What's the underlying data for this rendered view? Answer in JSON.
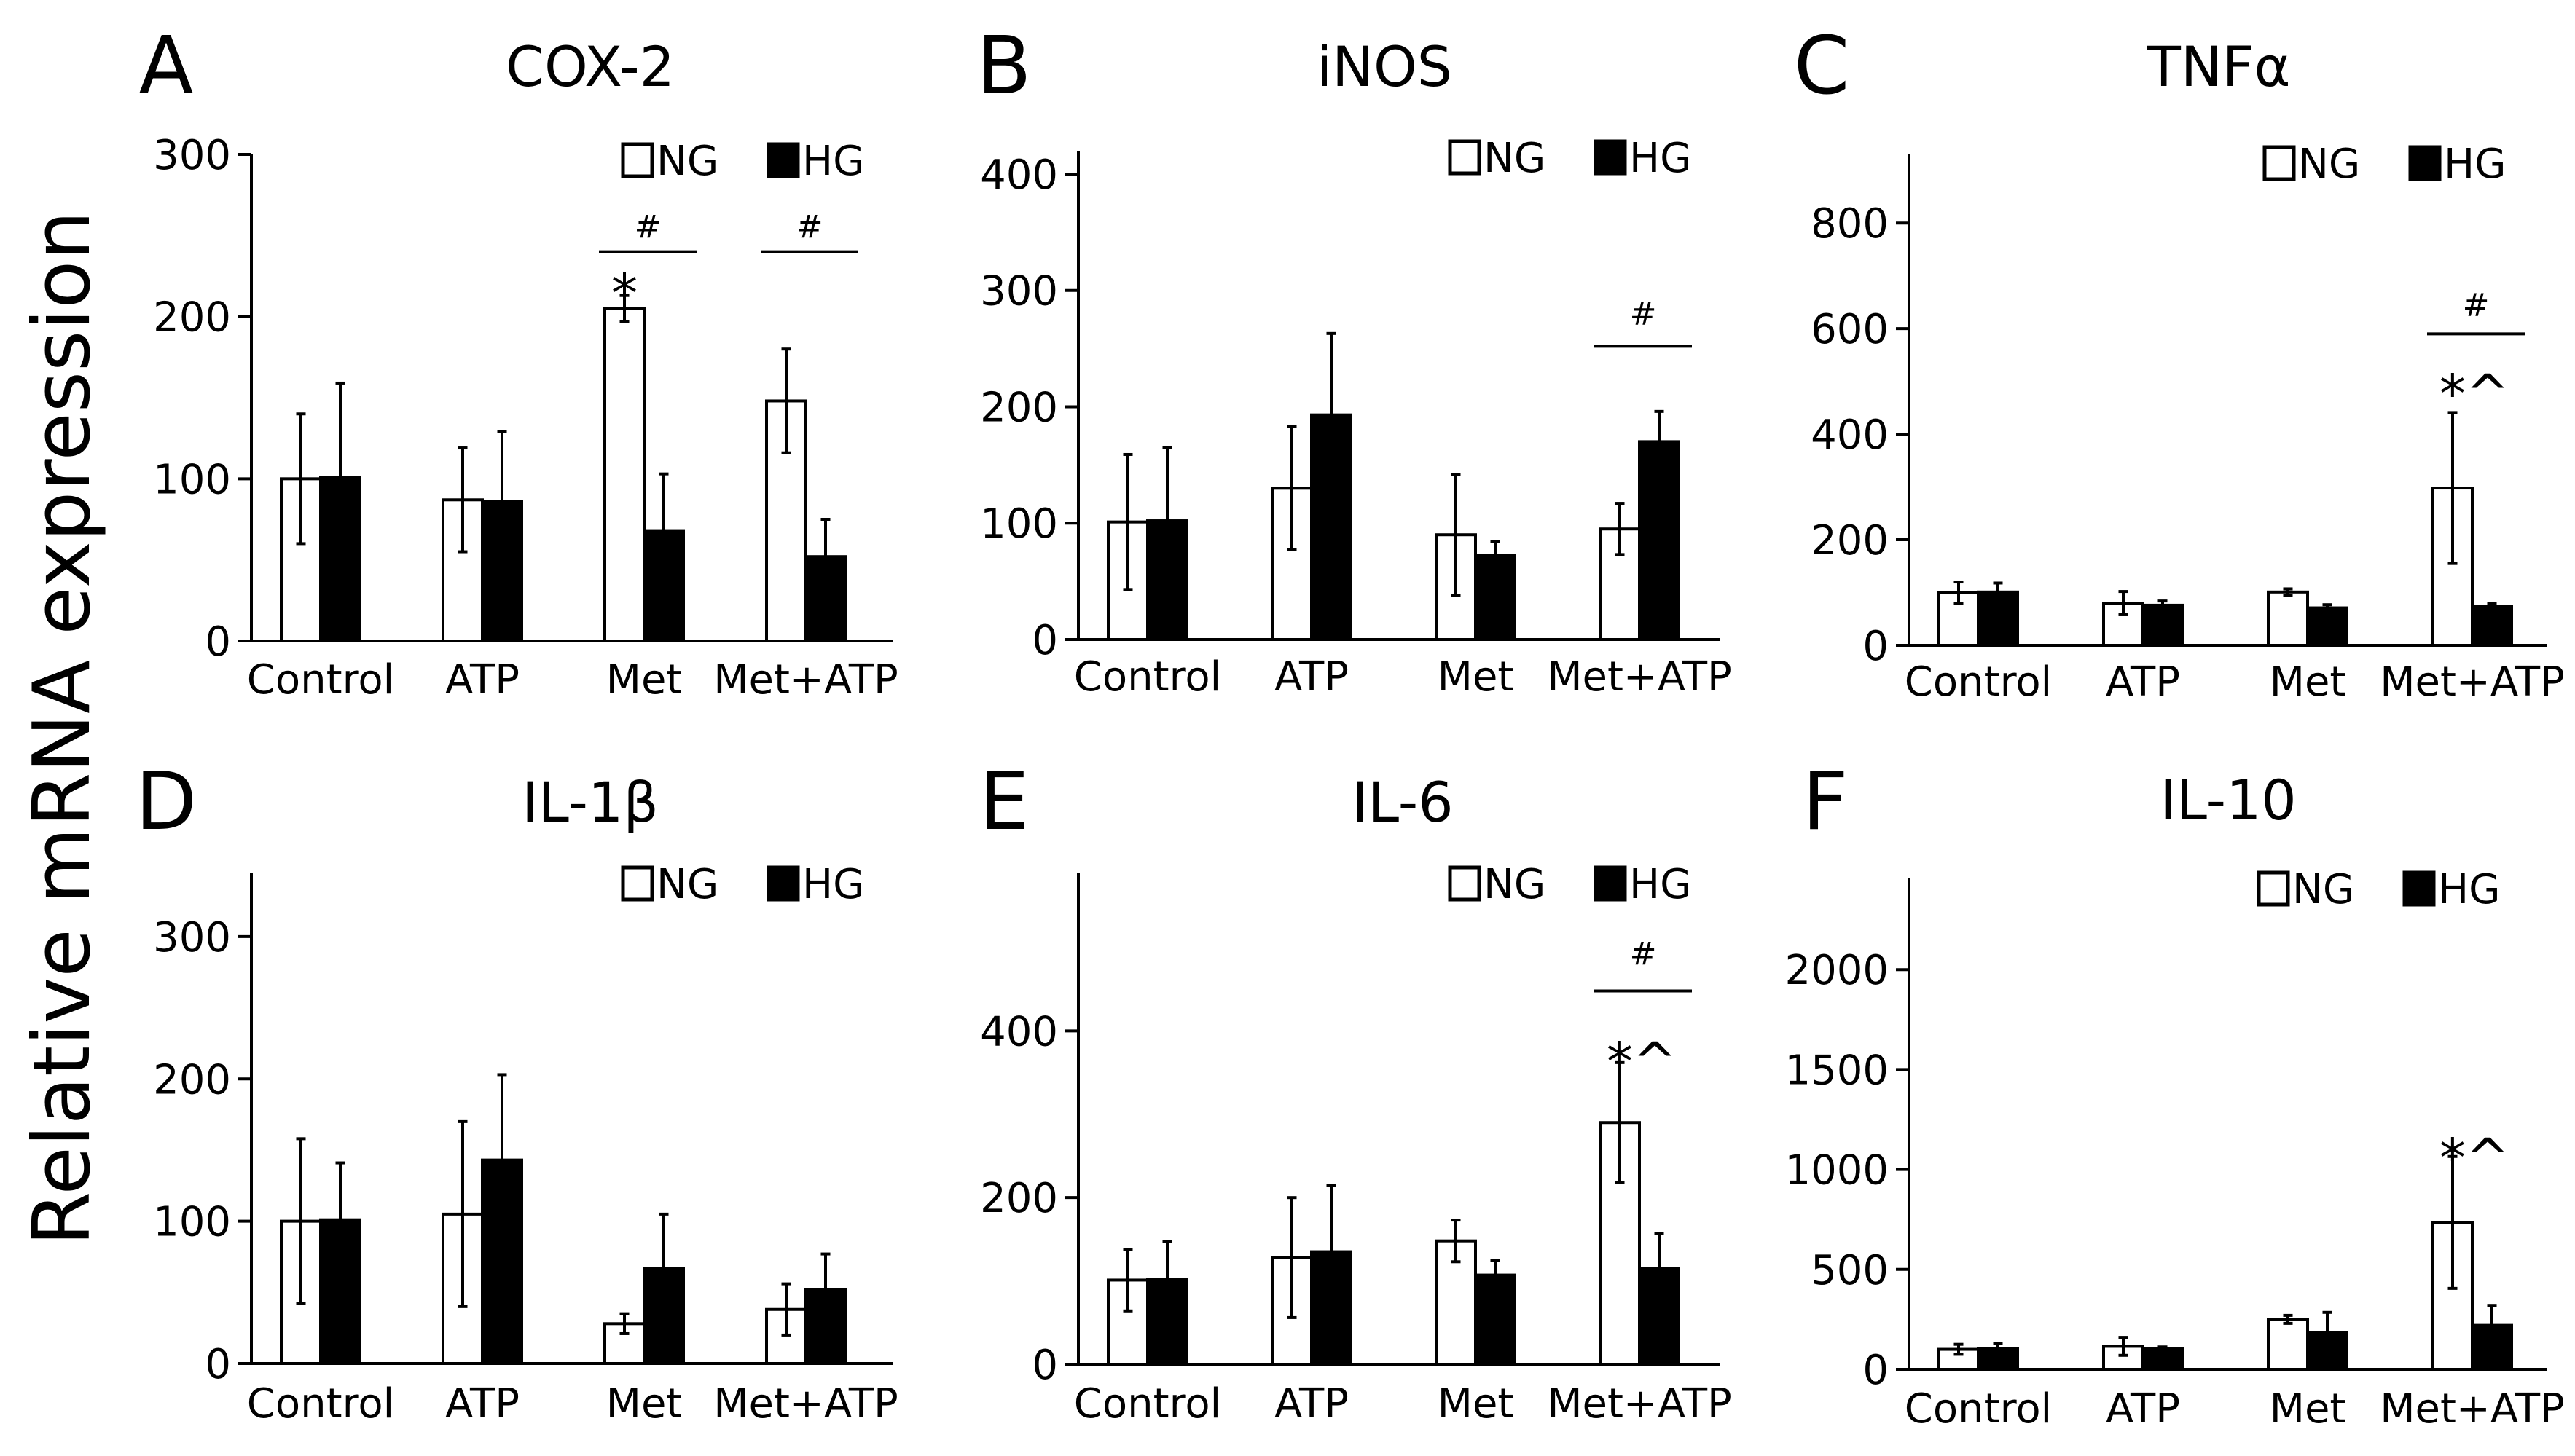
{
  "figure": {
    "ylabel": "Relative mRNA expression",
    "categories": [
      "Control",
      "ATP",
      "Met",
      "Met+ATP"
    ],
    "legend": [
      "NG",
      "HG"
    ],
    "colors": {
      "NG": "#ffffff",
      "HG": "#000000",
      "stroke": "#000000"
    }
  },
  "chart_data": [
    {
      "panel": "A",
      "title": "COX-2",
      "type": "bar",
      "categories": [
        "Control",
        "ATP",
        "Met",
        "Met+ATP"
      ],
      "series": [
        {
          "name": "NG",
          "values": [
            100,
            87,
            205,
            148
          ],
          "errors": [
            40,
            32,
            8,
            32
          ]
        },
        {
          "name": "HG",
          "values": [
            101,
            86,
            68,
            52
          ],
          "errors": [
            58,
            43,
            35,
            23
          ]
        }
      ],
      "ylim": [
        0,
        300
      ],
      "yticks": [
        0,
        100,
        200,
        300
      ],
      "legend_position": "top-right",
      "annotations": [
        {
          "text": "*",
          "category": 2,
          "series": "NG",
          "y": 222
        },
        {
          "text": "#",
          "category": 2,
          "bracket_y": 240,
          "label_y": 254
        },
        {
          "text": "#",
          "category": 3,
          "bracket_y": 240,
          "label_y": 254
        }
      ]
    },
    {
      "panel": "B",
      "title": "iNOS",
      "type": "bar",
      "categories": [
        "Control",
        "ATP",
        "Met",
        "Met+ATP"
      ],
      "series": [
        {
          "name": "NG",
          "values": [
            101,
            130,
            90,
            95
          ],
          "errors": [
            58,
            53,
            52,
            22
          ]
        },
        {
          "name": "HG",
          "values": [
            102,
            193,
            72,
            170
          ],
          "errors": [
            63,
            70,
            12,
            26
          ]
        }
      ],
      "ylim": [
        0,
        420
      ],
      "yticks": [
        0,
        100,
        200,
        300,
        400
      ],
      "legend_position": "top-right",
      "annotations": [
        {
          "text": "#",
          "category": 3,
          "bracket_y": 252,
          "label_y": 278
        }
      ]
    },
    {
      "panel": "C",
      "title": "TNFα",
      "type": "bar",
      "categories": [
        "Control",
        "ATP",
        "Met",
        "Met+ATP"
      ],
      "series": [
        {
          "name": "NG",
          "values": [
            100,
            80,
            101,
            298
          ],
          "errors": [
            20,
            22,
            6,
            143
          ]
        },
        {
          "name": "HG",
          "values": [
            101,
            76,
            71,
            74
          ],
          "errors": [
            17,
            8,
            6,
            6
          ]
        }
      ],
      "ylim": [
        0,
        930
      ],
      "yticks": [
        0,
        200,
        400,
        600,
        800
      ],
      "legend_position": "top-right",
      "annotations": [
        {
          "text": "*^",
          "category": 3,
          "series": "NG",
          "y": 500
        },
        {
          "text": "#",
          "category": 3,
          "bracket_y": 590,
          "label_y": 640
        }
      ]
    },
    {
      "panel": "D",
      "title": "IL-1β",
      "type": "bar",
      "categories": [
        "Control",
        "ATP",
        "Met",
        "Met+ATP"
      ],
      "series": [
        {
          "name": "NG",
          "values": [
            100,
            105,
            28,
            38
          ],
          "errors": [
            58,
            65,
            7,
            18
          ]
        },
        {
          "name": "HG",
          "values": [
            101,
            143,
            67,
            52
          ],
          "errors": [
            40,
            60,
            38,
            25
          ]
        }
      ],
      "ylim": [
        0,
        345
      ],
      "yticks": [
        0,
        100,
        200,
        300
      ],
      "legend_position": "top-right",
      "annotations": []
    },
    {
      "panel": "E",
      "title": "IL-6",
      "type": "bar",
      "categories": [
        "Control",
        "ATP",
        "Met",
        "Met+ATP"
      ],
      "series": [
        {
          "name": "NG",
          "values": [
            101,
            128,
            148,
            290
          ],
          "errors": [
            37,
            72,
            25,
            72
          ]
        },
        {
          "name": "HG",
          "values": [
            102,
            135,
            107,
            115
          ],
          "errors": [
            45,
            80,
            18,
            42
          ]
        }
      ],
      "ylim": [
        0,
        590
      ],
      "yticks": [
        0,
        200,
        400
      ],
      "legend_position": "top-right",
      "annotations": [
        {
          "text": "*^",
          "category": 3,
          "series": "NG",
          "y": 378
        },
        {
          "text": "#",
          "category": 3,
          "bracket_y": 448,
          "label_y": 490
        }
      ]
    },
    {
      "panel": "F",
      "title": "IL-10",
      "type": "bar",
      "categories": [
        "Control",
        "ATP",
        "Met",
        "Met+ATP"
      ],
      "series": [
        {
          "name": "NG",
          "values": [
            100,
            115,
            250,
            735
          ],
          "errors": [
            25,
            45,
            20,
            330
          ]
        },
        {
          "name": "HG",
          "values": [
            105,
            102,
            185,
            220
          ],
          "errors": [
            25,
            10,
            100,
            100
          ]
        }
      ],
      "ylim": [
        0,
        2460
      ],
      "yticks": [
        0,
        500,
        1000,
        1500,
        2000
      ],
      "legend_position": "top-right",
      "annotations": [
        {
          "text": "*^",
          "category": 3,
          "series": "NG",
          "y": 1120
        }
      ]
    }
  ]
}
